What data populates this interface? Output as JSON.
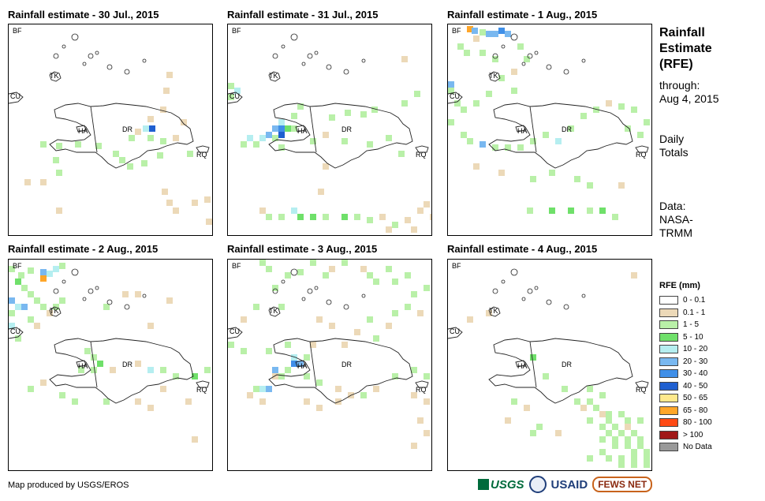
{
  "panels": [
    {
      "title": "Rainfall estimate - 30 Jul., 2015"
    },
    {
      "title": "Rainfall estimate - 31 Jul., 2015"
    },
    {
      "title": "Rainfall estimate - 1 Aug., 2015"
    },
    {
      "title": "Rainfall estimate - 2 Aug., 2015"
    },
    {
      "title": "Rainfall estimate - 3 Aug., 2015"
    },
    {
      "title": "Rainfall estimate - 4 Aug., 2015"
    }
  ],
  "map_labels": {
    "bf": "BF",
    "cu": "CU",
    "tk": "TK",
    "ha": "HA",
    "dr": "DR",
    "rq": "RQ"
  },
  "side": {
    "title_lines": [
      "Rainfall",
      "Estimate",
      "(RFE)"
    ],
    "through_lines": [
      "through:",
      "Aug 4, 2015"
    ],
    "totals_lines": [
      "Daily",
      "Totals"
    ],
    "data_lines": [
      "Data:",
      "NASA-",
      "TRMM"
    ]
  },
  "legend": {
    "title": "RFE (mm)",
    "items": [
      {
        "label": "0 - 0.1",
        "color": "#ffffff"
      },
      {
        "label": "0.1 - 1",
        "color": "#ecd9b8"
      },
      {
        "label": "1 - 5",
        "color": "#b9f0a8"
      },
      {
        "label": "5 - 10",
        "color": "#6fe06a"
      },
      {
        "label": "10 - 20",
        "color": "#b5eef0"
      },
      {
        "label": "20 - 30",
        "color": "#79b8f0"
      },
      {
        "label": "30 - 40",
        "color": "#3f8fe8"
      },
      {
        "label": "40 - 50",
        "color": "#1f5fd0"
      },
      {
        "label": "50 - 65",
        "color": "#ffe98c"
      },
      {
        "label": "65 - 80",
        "color": "#ffa629"
      },
      {
        "label": "80 - 100",
        "color": "#ff4a14"
      },
      {
        "label": "> 100",
        "color": "#a01818"
      },
      {
        "label": "No Data",
        "color": "#999999"
      }
    ]
  },
  "credit": "Map produced by USGS/EROS",
  "logos": {
    "usgs": "USGS",
    "usaid": "USAID",
    "fews": "FEWS NET"
  }
}
